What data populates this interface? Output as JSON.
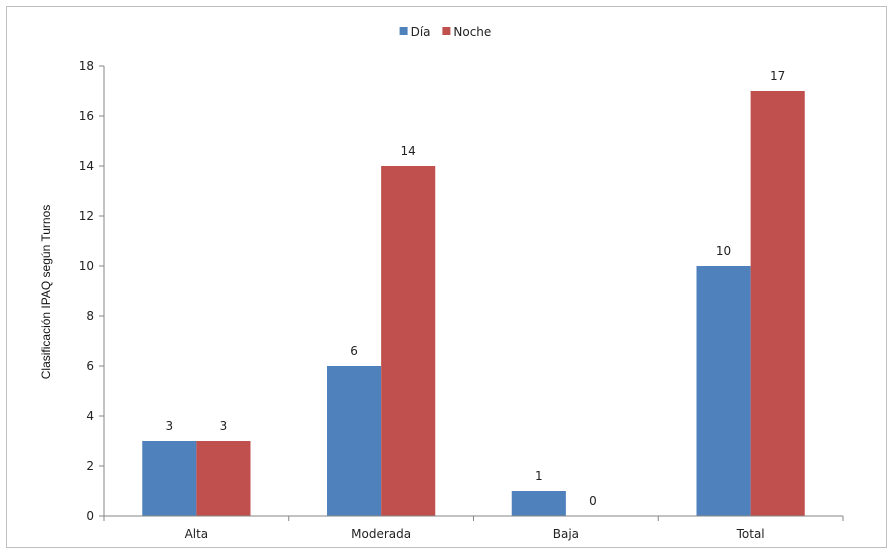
{
  "chart_data": {
    "type": "bar",
    "categories": [
      "Alta",
      "Moderada",
      "Baja",
      "Total"
    ],
    "series": [
      {
        "name": "Día",
        "values": [
          3,
          6,
          1,
          10
        ],
        "color": "#4f81bd"
      },
      {
        "name": "Noche",
        "values": [
          3,
          14,
          0,
          17
        ],
        "color": "#c0504d"
      }
    ],
    "ylabel": "Clasificación IPAQ según Turnos",
    "ylim": [
      0,
      18
    ],
    "yticks": [
      0,
      2,
      4,
      6,
      8,
      10,
      12,
      14,
      16,
      18
    ],
    "grid": false,
    "legend_position": "top-center",
    "data_labels": true
  }
}
